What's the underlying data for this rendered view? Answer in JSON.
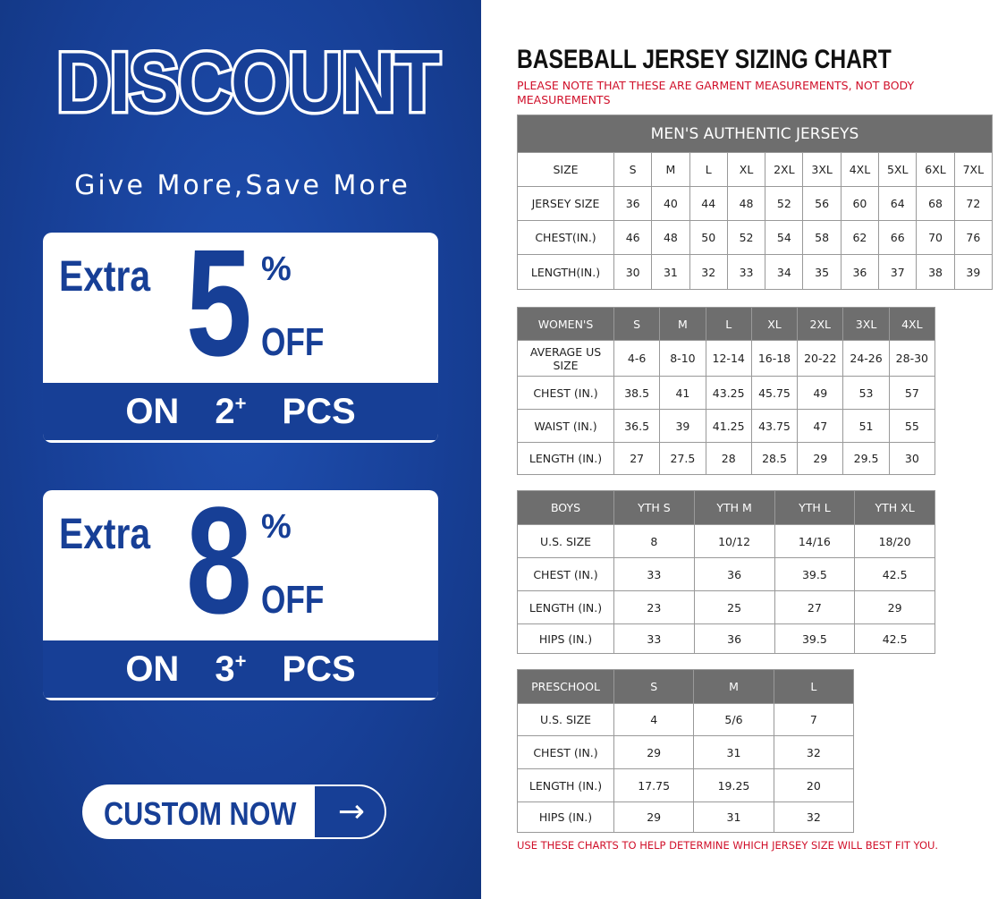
{
  "promo": {
    "headline": "DISCOUNT",
    "tagline": "Give More,Save More",
    "offers": [
      {
        "extra": "Extra",
        "value": "5",
        "percent": "%",
        "off": "OFF",
        "on": "ON",
        "qty": "2",
        "plus": "+",
        "pcs": "PCS"
      },
      {
        "extra": "Extra",
        "value": "8",
        "percent": "%",
        "off": "OFF",
        "on": "ON",
        "qty": "3",
        "plus": "+",
        "pcs": "PCS"
      }
    ],
    "cta_label": "CUSTOM NOW",
    "cta_icon": "arrow-right-icon",
    "colors": {
      "brand_blue": "#173f96",
      "white": "#ffffff"
    }
  },
  "chart": {
    "title": "BASEBALL JERSEY SIZING CHART",
    "note": "PLEASE NOTE THAT THESE ARE GARMENT MEASUREMENTS, NOT BODY MEASUREMENTS",
    "footer": "USE THESE CHARTS TO HELP DETERMINE WHICH JERSEY SIZE WILL BEST FIT YOU.",
    "note_color": "#d0102a",
    "men": {
      "caption": "MEN'S AUTHENTIC JERSEYS",
      "rows": [
        [
          "SIZE",
          "S",
          "M",
          "L",
          "XL",
          "2XL",
          "3XL",
          "4XL",
          "5XL",
          "6XL",
          "7XL"
        ],
        [
          "JERSEY SIZE",
          "36",
          "40",
          "44",
          "48",
          "52",
          "56",
          "60",
          "64",
          "68",
          "72"
        ],
        [
          "CHEST(IN.)",
          "46",
          "48",
          "50",
          "52",
          "54",
          "58",
          "62",
          "66",
          "70",
          "76"
        ],
        [
          "LENGTH(IN.)",
          "30",
          "31",
          "32",
          "33",
          "34",
          "35",
          "36",
          "37",
          "38",
          "39"
        ]
      ]
    },
    "women": {
      "header": [
        "WOMEN'S",
        "S",
        "M",
        "L",
        "XL",
        "2XL",
        "3XL",
        "4XL"
      ],
      "rows": [
        [
          "AVERAGE US SIZE",
          "4-6",
          "8-10",
          "12-14",
          "16-18",
          "20-22",
          "24-26",
          "28-30"
        ],
        [
          "CHEST (IN.)",
          "38.5",
          "41",
          "43.25",
          "45.75",
          "49",
          "53",
          "57"
        ],
        [
          "WAIST (IN.)",
          "36.5",
          "39",
          "41.25",
          "43.75",
          "47",
          "51",
          "55"
        ],
        [
          "LENGTH (IN.)",
          "27",
          "27.5",
          "28",
          "28.5",
          "29",
          "29.5",
          "30"
        ]
      ]
    },
    "boys": {
      "header": [
        "BOYS",
        "YTH S",
        "YTH M",
        "YTH L",
        "YTH XL"
      ],
      "rows": [
        [
          "U.S. SIZE",
          "8",
          "10/12",
          "14/16",
          "18/20"
        ],
        [
          "CHEST (IN.)",
          "33",
          "36",
          "39.5",
          "42.5"
        ],
        [
          "LENGTH (IN.)",
          "23",
          "25",
          "27",
          "29"
        ],
        [
          "HIPS (IN.)",
          "33",
          "36",
          "39.5",
          "42.5"
        ]
      ]
    },
    "preschool": {
      "header": [
        "PRESCHOOL",
        "S",
        "M",
        "L"
      ],
      "rows": [
        [
          "U.S. SIZE",
          "4",
          "5/6",
          "7"
        ],
        [
          "CHEST (IN.)",
          "29",
          "31",
          "32"
        ],
        [
          "LENGTH (IN.)",
          "17.75",
          "19.25",
          "20"
        ],
        [
          "HIPS (IN.)",
          "29",
          "31",
          "32"
        ]
      ]
    }
  }
}
